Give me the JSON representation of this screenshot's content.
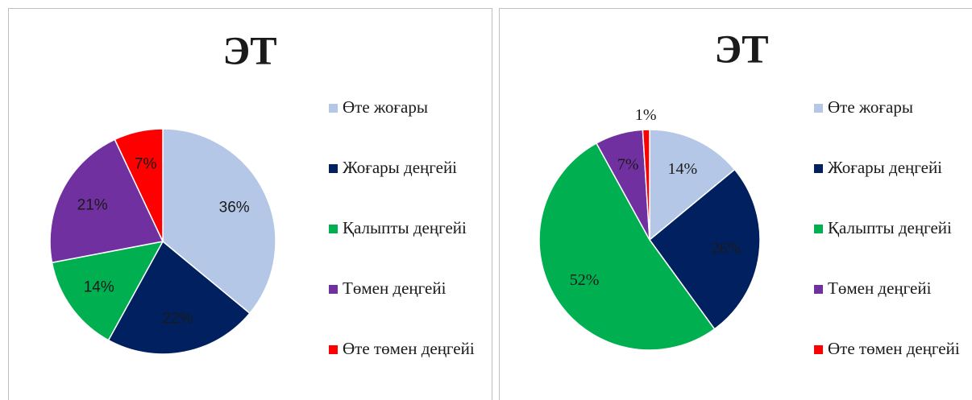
{
  "chart_data": [
    {
      "type": "pie",
      "title": "ЭТ",
      "categories": [
        "Өте жоғары",
        "Жоғары деңгейі",
        "Қалыпты деңгейі",
        "Төмен деңгейі",
        "Өте төмен деңгейі"
      ],
      "values": [
        36,
        22,
        14,
        21,
        7
      ],
      "value_labels": [
        "36%",
        "22%",
        "14%",
        "21%",
        "7%"
      ],
      "colors": [
        "#b4c7e7",
        "#002060",
        "#00b050",
        "#7030a0",
        "#ff0000"
      ],
      "legend": "right"
    },
    {
      "type": "pie",
      "title": "ЭТ",
      "categories": [
        "Өте жоғары",
        "Жоғары деңгейі",
        "Қалыпты деңгейі",
        "Төмен деңгейі",
        "Өте төмен деңгейі"
      ],
      "values": [
        14,
        26,
        52,
        7,
        1
      ],
      "value_labels": [
        "14%",
        "26%",
        "52%",
        "7%",
        "1%"
      ],
      "colors": [
        "#b4c7e7",
        "#002060",
        "#00b050",
        "#7030a0",
        "#ff0000"
      ],
      "legend": "right"
    }
  ]
}
